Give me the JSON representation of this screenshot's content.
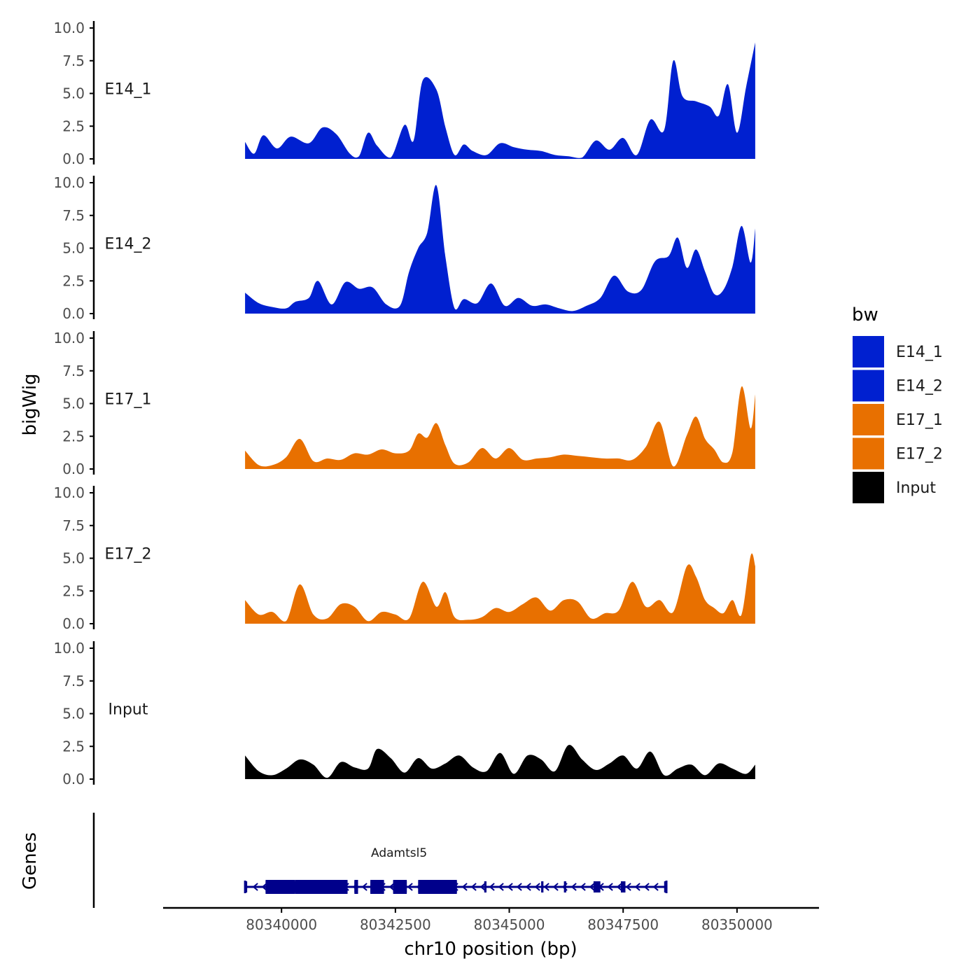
{
  "chart_data": {
    "type": "area",
    "panel_kind": "genome-browser coverage tracks",
    "y_axis": {
      "title": "bigWig",
      "ylim": [
        0,
        10
      ],
      "ticks": [
        "0.0",
        "2.5",
        "5.0",
        "7.5",
        "10.0"
      ],
      "tick_values": [
        0,
        2.5,
        5,
        7.5,
        10
      ]
    },
    "x_axis": {
      "title": "chr10 position (bp)",
      "range": [
        80337400,
        80351800
      ],
      "ticks": [
        "80340000",
        "80342500",
        "80345000",
        "80347500",
        "80350000"
      ],
      "tick_values": [
        80340000,
        80342500,
        80345000,
        80347500,
        80350000
      ]
    },
    "legend": {
      "title": "bw",
      "placement": "right",
      "entries": [
        {
          "label": "E14_1",
          "color": "#0020d0"
        },
        {
          "label": "E14_2",
          "color": "#0020d0"
        },
        {
          "label": "E17_1",
          "color": "#e87000"
        },
        {
          "label": "E17_2",
          "color": "#e87000"
        },
        {
          "label": "Input",
          "color": "#000000"
        }
      ]
    },
    "series": [
      {
        "name": "E14_1",
        "color": "#0020d0",
        "x": [
          80339200,
          80339400,
          80339600,
          80339900,
          80340200,
          80340600,
          80340900,
          80341200,
          80341500,
          80341700,
          80341900,
          80342100,
          80342400,
          80342700,
          80342900,
          80343100,
          80343400,
          80343600,
          80343800,
          80344000,
          80344200,
          80344500,
          80344800,
          80345100,
          80345400,
          80345700,
          80346000,
          80346300,
          80346600,
          80346900,
          80347200,
          80347500,
          80347800,
          80348100,
          80348400,
          80348600,
          80348800,
          80349100,
          80349400,
          80349600,
          80349800,
          80350000,
          80350200,
          80350400
        ],
        "values": [
          1.3,
          0.4,
          1.8,
          0.8,
          1.7,
          1.2,
          2.4,
          1.9,
          0.4,
          0.2,
          2.0,
          1.0,
          0.1,
          2.6,
          1.4,
          6.0,
          5.3,
          2.4,
          0.3,
          1.1,
          0.6,
          0.3,
          1.2,
          0.9,
          0.7,
          0.6,
          0.3,
          0.2,
          0.1,
          1.4,
          0.7,
          1.6,
          0.3,
          3.0,
          2.2,
          7.5,
          4.8,
          4.4,
          4.0,
          3.3,
          5.7,
          2.0,
          5.5,
          8.9
        ]
      },
      {
        "name": "E14_2",
        "color": "#0020d0",
        "x": [
          80339200,
          80339500,
          80339800,
          80340100,
          80340300,
          80340600,
          80340800,
          80341100,
          80341400,
          80341700,
          80342000,
          80342300,
          80342600,
          80342800,
          80343000,
          80343200,
          80343400,
          80343600,
          80343800,
          80344000,
          80344300,
          80344600,
          80344900,
          80345200,
          80345500,
          80345800,
          80346100,
          80346400,
          80346700,
          80347000,
          80347300,
          80347600,
          80347900,
          80348200,
          80348500,
          80348700,
          80348900,
          80349100,
          80349300,
          80349500,
          80349700,
          80349900,
          80350100,
          80350300,
          80350400
        ],
        "values": [
          1.6,
          0.8,
          0.5,
          0.4,
          0.9,
          1.2,
          2.5,
          0.7,
          2.4,
          1.9,
          2.0,
          0.7,
          0.6,
          3.2,
          5.0,
          6.2,
          9.8,
          4.3,
          0.4,
          1.1,
          0.8,
          2.3,
          0.6,
          1.2,
          0.6,
          0.7,
          0.4,
          0.2,
          0.6,
          1.2,
          2.9,
          1.7,
          1.8,
          4.0,
          4.4,
          5.8,
          3.5,
          4.9,
          3.2,
          1.5,
          1.8,
          3.6,
          6.7,
          3.9,
          6.5
        ]
      },
      {
        "name": "E17_1",
        "color": "#e87000",
        "x": [
          80339200,
          80339500,
          80339800,
          80340100,
          80340400,
          80340700,
          80341000,
          80341300,
          80341600,
          80341900,
          80342200,
          80342500,
          80342800,
          80343000,
          80343200,
          80343400,
          80343600,
          80343800,
          80344100,
          80344400,
          80344700,
          80345000,
          80345300,
          80345600,
          80345900,
          80346200,
          80346500,
          80346800,
          80347100,
          80347400,
          80347700,
          80348000,
          80348300,
          80348600,
          80348900,
          80349100,
          80349300,
          80349500,
          80349700,
          80349900,
          80350100,
          80350300,
          80350400
        ],
        "values": [
          1.4,
          0.3,
          0.3,
          0.9,
          2.3,
          0.6,
          0.8,
          0.7,
          1.2,
          1.1,
          1.5,
          1.2,
          1.4,
          2.7,
          2.4,
          3.5,
          1.8,
          0.4,
          0.5,
          1.6,
          0.8,
          1.6,
          0.7,
          0.8,
          0.9,
          1.1,
          1.0,
          0.9,
          0.8,
          0.8,
          0.7,
          1.7,
          3.6,
          0.2,
          2.6,
          4.0,
          2.3,
          1.5,
          0.5,
          1.3,
          6.3,
          3.1,
          5.7
        ]
      },
      {
        "name": "E17_2",
        "color": "#e87000",
        "x": [
          80339200,
          80339500,
          80339800,
          80340100,
          80340400,
          80340700,
          80341000,
          80341300,
          80341600,
          80341900,
          80342200,
          80342500,
          80342800,
          80343100,
          80343400,
          80343600,
          80343800,
          80344100,
          80344400,
          80344700,
          80345000,
          80345300,
          80345600,
          80345900,
          80346200,
          80346500,
          80346800,
          80347100,
          80347400,
          80347700,
          80348000,
          80348300,
          80348600,
          80348900,
          80349100,
          80349300,
          80349500,
          80349700,
          80349900,
          80350100,
          80350300,
          80350400
        ],
        "values": [
          1.8,
          0.7,
          0.9,
          0.2,
          3.0,
          0.7,
          0.4,
          1.5,
          1.3,
          0.2,
          0.9,
          0.7,
          0.4,
          3.2,
          1.3,
          2.4,
          0.5,
          0.3,
          0.5,
          1.2,
          0.9,
          1.5,
          2.0,
          1.0,
          1.8,
          1.7,
          0.4,
          0.8,
          1.0,
          3.2,
          1.3,
          1.8,
          0.9,
          4.4,
          3.6,
          1.8,
          1.2,
          0.8,
          1.8,
          0.7,
          5.2,
          4.4
        ]
      },
      {
        "name": "Input",
        "color": "#000000",
        "x": [
          80339200,
          80339500,
          80339800,
          80340100,
          80340400,
          80340700,
          80341000,
          80341300,
          80341600,
          80341900,
          80342100,
          80342400,
          80342700,
          80343000,
          80343300,
          80343600,
          80343900,
          80344200,
          80344500,
          80344800,
          80345100,
          80345400,
          80345700,
          80346000,
          80346300,
          80346600,
          80346900,
          80347200,
          80347500,
          80347800,
          80348100,
          80348400,
          80348700,
          80349000,
          80349300,
          80349600,
          80349900,
          80350200,
          80350400
        ],
        "values": [
          1.8,
          0.6,
          0.3,
          0.8,
          1.5,
          1.1,
          0.1,
          1.3,
          0.9,
          0.8,
          2.3,
          1.6,
          0.5,
          1.6,
          0.8,
          1.2,
          1.8,
          0.9,
          0.6,
          2.0,
          0.4,
          1.8,
          1.5,
          0.6,
          2.6,
          1.5,
          0.7,
          1.2,
          1.8,
          0.8,
          2.1,
          0.3,
          0.8,
          1.1,
          0.3,
          1.2,
          0.8,
          0.4,
          1.1
        ]
      }
    ],
    "genes": {
      "track_label": "Genes",
      "color": "#00008b",
      "items": [
        {
          "name": "Adamtsl5",
          "strand": "-",
          "start": 80339200,
          "end": 80348450,
          "exons": [
            [
              80339200,
              80339230
            ],
            [
              80339650,
              80341450
            ],
            [
              80341600,
              80341680
            ],
            [
              80341950,
              80342250
            ],
            [
              80342450,
              80342750
            ],
            [
              80343000,
              80343850
            ],
            [
              80344450,
              80344500
            ],
            [
              80345700,
              80345750
            ],
            [
              80346200,
              80346250
            ],
            [
              80346850,
              80347000
            ],
            [
              80347450,
              80347550
            ],
            [
              80348400,
              80348450
            ]
          ],
          "thick_exons": [
            [
              80339650,
              80340300
            ],
            [
              80340300,
              80341450
            ],
            [
              80341600,
              80341680
            ],
            [
              80341950,
              80342250
            ],
            [
              80342450,
              80342750
            ],
            [
              80343000,
              80343850
            ]
          ]
        }
      ]
    }
  }
}
